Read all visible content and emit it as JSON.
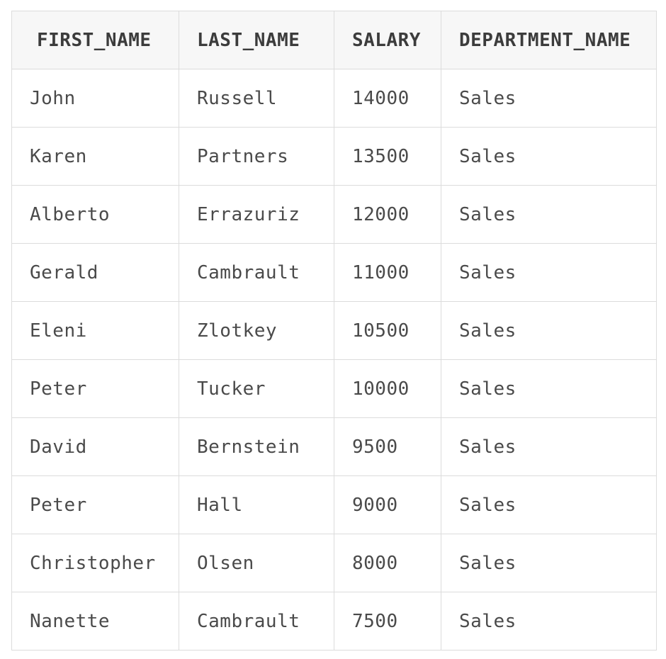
{
  "table": {
    "columns": [
      "FIRST_NAME",
      "LAST_NAME",
      "SALARY",
      "DEPARTMENT_NAME"
    ],
    "rows": [
      [
        "John",
        "Russell",
        "14000",
        "Sales"
      ],
      [
        "Karen",
        "Partners",
        "13500",
        "Sales"
      ],
      [
        "Alberto",
        "Errazuriz",
        "12000",
        "Sales"
      ],
      [
        "Gerald",
        "Cambrault",
        "11000",
        "Sales"
      ],
      [
        "Eleni",
        "Zlotkey",
        "10500",
        "Sales"
      ],
      [
        "Peter",
        "Tucker",
        "10000",
        "Sales"
      ],
      [
        "David",
        "Bernstein",
        "9500",
        "Sales"
      ],
      [
        "Peter",
        "Hall",
        "9000",
        "Sales"
      ],
      [
        "Christopher",
        "Olsen",
        "8000",
        "Sales"
      ],
      [
        "Nanette",
        "Cambrault",
        "7500",
        "Sales"
      ]
    ]
  }
}
